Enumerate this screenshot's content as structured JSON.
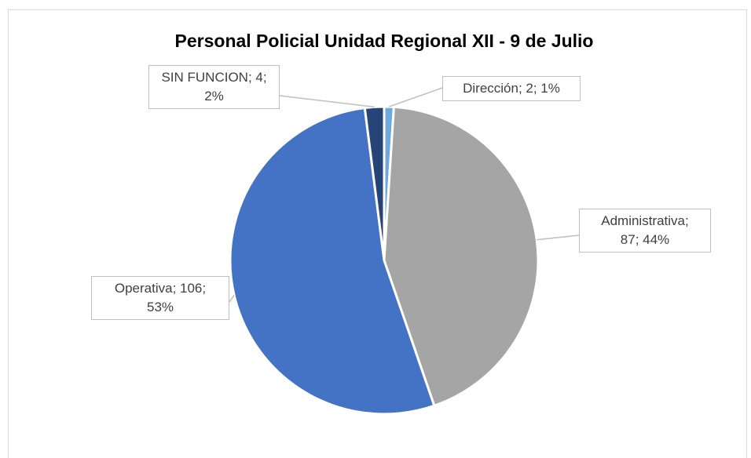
{
  "chart_data": {
    "type": "pie",
    "title": "Personal Policial Unidad Regional XII - 9 de Julio",
    "values": [
      2,
      87,
      106,
      4
    ],
    "value_labels": [
      "Dirección; 2; 1%",
      "Administrativa; 87; 44%",
      "Operativa; 106; 53%",
      "SIN FUNCION; 4; 2%"
    ],
    "colors": [
      "#6fa8dc",
      "#a5a5a5",
      "#4472c4",
      "#264478"
    ]
  }
}
